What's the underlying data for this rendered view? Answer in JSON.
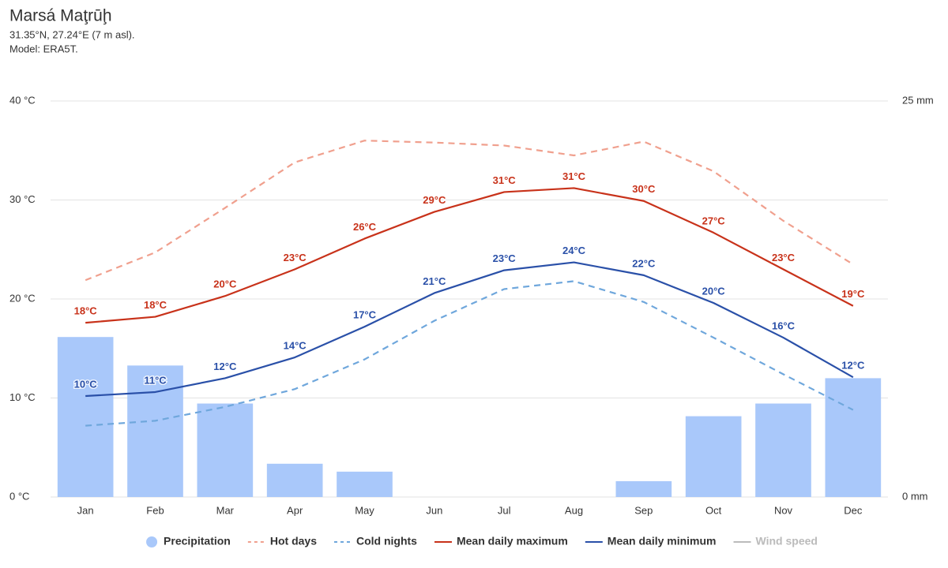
{
  "chart_data": {
    "type": "combo",
    "title": "Marsá Maţrūḩ",
    "subtitle": [
      "31.35°N, 27.24°E (7 m asl).",
      "Model: ERA5T."
    ],
    "categories": [
      "Jan",
      "Feb",
      "Mar",
      "Apr",
      "May",
      "Jun",
      "Jul",
      "Aug",
      "Sep",
      "Oct",
      "Nov",
      "Dec"
    ],
    "ylim": [
      0,
      40
    ],
    "yticks": [
      {
        "value": 0,
        "label": "0 °C"
      },
      {
        "value": 10,
        "label": "10 °C"
      },
      {
        "value": 20,
        "label": "20 °C"
      },
      {
        "value": 30,
        "label": "30 °C"
      },
      {
        "value": 40,
        "label": "40 °C"
      }
    ],
    "y2lim": [
      0,
      25
    ],
    "y2ticks": [
      {
        "value": 0,
        "label": "0 mm"
      },
      {
        "value": 25,
        "label": "25 mm"
      }
    ],
    "grid": true,
    "legend": "bottom",
    "series": [
      {
        "name": "Precipitation",
        "type": "bar",
        "axis": "y2",
        "color": "#a9c8fa",
        "values": [
          10.1,
          8.3,
          5.9,
          2.1,
          1.6,
          0,
          0,
          0,
          1.0,
          5.1,
          5.9,
          7.5
        ]
      },
      {
        "name": "Hot days",
        "type": "line",
        "dash": true,
        "color": "#f0a08e",
        "values": [
          21.9,
          24.7,
          29.2,
          33.8,
          36.0,
          35.8,
          35.5,
          34.5,
          35.9,
          32.9,
          27.9,
          23.5
        ]
      },
      {
        "name": "Cold nights",
        "type": "line",
        "dash": true,
        "color": "#6fa7dc",
        "values": [
          7.2,
          7.7,
          9.1,
          10.9,
          13.9,
          17.8,
          21.0,
          21.8,
          19.7,
          16.1,
          12.4,
          8.8
        ]
      },
      {
        "name": "Mean daily maximum",
        "type": "line",
        "color": "#c8321a",
        "values": [
          17.6,
          18.2,
          20.3,
          23.0,
          26.1,
          28.8,
          30.8,
          31.2,
          29.9,
          26.7,
          23.0,
          19.3
        ],
        "value_labels": [
          "18°C",
          "18°C",
          "20°C",
          "23°C",
          "26°C",
          "29°C",
          "31°C",
          "31°C",
          "30°C",
          "27°C",
          "23°C",
          "19°C"
        ]
      },
      {
        "name": "Mean daily minimum",
        "type": "line",
        "color": "#2a50a8",
        "values": [
          10.2,
          10.6,
          12.0,
          14.1,
          17.2,
          20.6,
          22.9,
          23.7,
          22.4,
          19.6,
          16.1,
          12.1
        ],
        "value_labels": [
          "10°C",
          "11°C",
          "12°C",
          "14°C",
          "17°C",
          "21°C",
          "23°C",
          "24°C",
          "22°C",
          "20°C",
          "16°C",
          "12°C"
        ]
      },
      {
        "name": "Wind speed",
        "type": "line",
        "hidden": true,
        "color": "#aaaaaa",
        "values": [
          null,
          null,
          null,
          null,
          null,
          null,
          null,
          null,
          null,
          null,
          null,
          null
        ]
      }
    ]
  }
}
